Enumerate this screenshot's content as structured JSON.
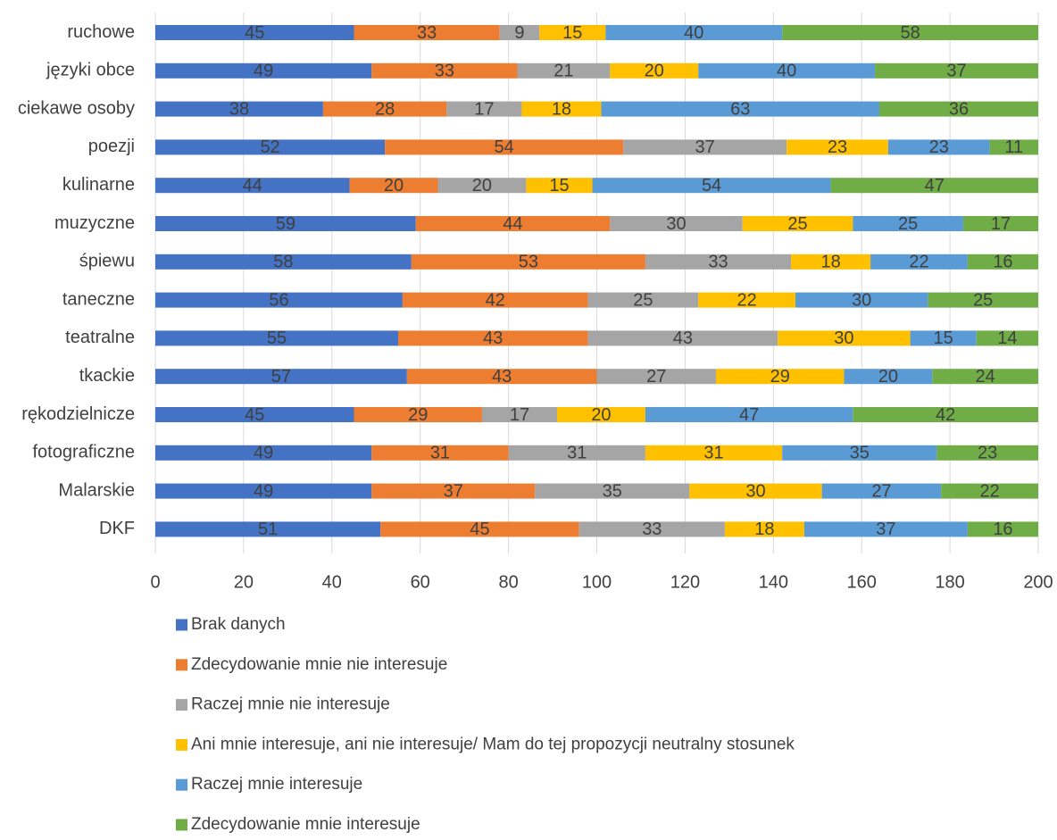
{
  "chart_data": {
    "type": "bar",
    "orientation": "horizontal",
    "stacked": true,
    "title": "",
    "xlabel": "",
    "ylabel": "",
    "xlim": [
      0,
      200
    ],
    "x_ticks": [
      0,
      20,
      40,
      60,
      80,
      100,
      120,
      140,
      160,
      180,
      200
    ],
    "grid": "vertical",
    "legend_position": "bottom",
    "categories": [
      "ruchowe",
      "języki obce",
      "ciekawe osoby",
      "poezji",
      "kulinarne",
      "muzyczne",
      "śpiewu",
      "taneczne",
      "teatralne",
      "tkackie",
      "rękodzielnicze",
      "fotograficzne",
      "Malarskie",
      "DKF"
    ],
    "series": [
      {
        "name": "Brak danych",
        "color": "#4472C4",
        "values": [
          45,
          49,
          38,
          52,
          44,
          59,
          58,
          56,
          55,
          57,
          45,
          49,
          49,
          51
        ]
      },
      {
        "name": "Zdecydowanie mnie nie interesuje",
        "color": "#ED7D31",
        "values": [
          33,
          33,
          28,
          54,
          20,
          44,
          53,
          42,
          43,
          43,
          29,
          31,
          37,
          45
        ]
      },
      {
        "name": "Raczej mnie nie interesuje",
        "color": "#A5A5A5",
        "values": [
          9,
          21,
          17,
          37,
          20,
          30,
          33,
          25,
          43,
          27,
          17,
          31,
          35,
          33
        ]
      },
      {
        "name": "Ani mnie interesuje, ani nie interesuje/ Mam do tej propozycji neutralny stosunek",
        "color": "#FFC000",
        "values": [
          15,
          20,
          18,
          23,
          15,
          25,
          18,
          22,
          30,
          29,
          20,
          31,
          30,
          18
        ]
      },
      {
        "name": "Raczej mnie interesuje",
        "color": "#5B9BD5",
        "values": [
          40,
          40,
          63,
          23,
          54,
          25,
          22,
          30,
          15,
          20,
          47,
          35,
          27,
          37
        ]
      },
      {
        "name": "Zdecydowanie mnie interesuje",
        "color": "#70AD47",
        "values": [
          58,
          37,
          36,
          11,
          47,
          17,
          16,
          25,
          14,
          24,
          42,
          23,
          22,
          16
        ]
      }
    ]
  }
}
